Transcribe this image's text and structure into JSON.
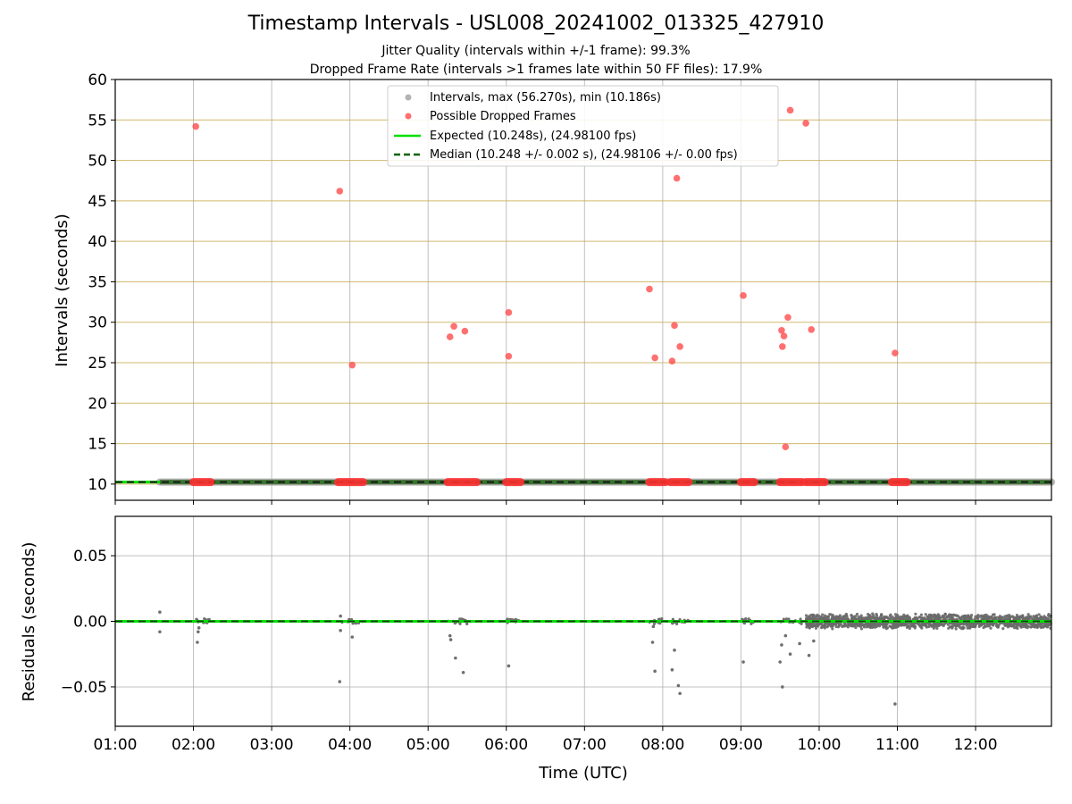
{
  "chart_data": [
    {
      "type": "scatter",
      "title": "Timestamp Intervals - USL008_20241002_013325_427910",
      "subtitle_lines": [
        "Jitter Quality (intervals within +/-1 frame): 99.3%",
        "Dropped Frame Rate (intervals >1 frames late within 50 FF files): 17.9%"
      ],
      "ylabel": "Intervals (seconds)",
      "xlabel": "",
      "ylim": [
        8,
        60
      ],
      "xlim_hours": [
        1.0,
        12.97
      ],
      "yticks": [
        "10",
        "15",
        "20",
        "25",
        "30",
        "35",
        "40",
        "45",
        "50",
        "55",
        "60"
      ],
      "grid": true,
      "legend_position": "top-center",
      "legend": [
        "Intervals, max (56.270s), min (10.186s)",
        "Possible Dropped Frames",
        "Expected (10.248s), (24.98100 fps)",
        "Median (10.248 +/- 0.002 s), (24.98106 +/- 0.00 fps)"
      ],
      "series": [
        {
          "name": "Intervals, max (56.270s), min (10.186s)",
          "color": "#808080",
          "x_range_hours": [
            1.57,
            12.97
          ],
          "y": 10.248
        },
        {
          "name": "Possible Dropped Frames",
          "color": "#ff3b3b",
          "points": [
            [
              2.03,
              54.2
            ],
            [
              3.87,
              46.2
            ],
            [
              4.03,
              24.7
            ],
            [
              5.28,
              28.2
            ],
            [
              5.33,
              29.5
            ],
            [
              5.47,
              28.9
            ],
            [
              6.03,
              31.2
            ],
            [
              6.03,
              25.8
            ],
            [
              7.83,
              34.1
            ],
            [
              7.9,
              25.6
            ],
            [
              8.12,
              25.2
            ],
            [
              8.15,
              29.6
            ],
            [
              8.18,
              47.8
            ],
            [
              8.22,
              27.0
            ],
            [
              9.03,
              33.3
            ],
            [
              9.52,
              29.0
            ],
            [
              9.53,
              27.0
            ],
            [
              9.55,
              28.3
            ],
            [
              9.57,
              14.6
            ],
            [
              9.6,
              30.6
            ],
            [
              9.63,
              56.2
            ],
            [
              9.83,
              54.6
            ],
            [
              9.9,
              29.1
            ],
            [
              10.97,
              26.2
            ]
          ],
          "clusters_at_baseline": [
            [
              2.0,
              2.22
            ],
            [
              3.85,
              4.17
            ],
            [
              5.25,
              5.62
            ],
            [
              6.0,
              6.18
            ],
            [
              7.83,
              8.03
            ],
            [
              8.1,
              8.33
            ],
            [
              9.0,
              9.17
            ],
            [
              9.5,
              9.78
            ],
            [
              9.83,
              10.07
            ],
            [
              10.93,
              11.12
            ]
          ]
        },
        {
          "name": "Expected (10.248s), (24.98100 fps)",
          "color": "#00e000",
          "y": 10.248
        },
        {
          "name": "Median (10.248 +/- 0.002 s), (24.98106 +/- 0.00 fps)",
          "color": "#006400",
          "y": 10.248
        }
      ]
    },
    {
      "type": "scatter",
      "ylabel": "Residuals (seconds)",
      "xlabel": "Time (UTC)",
      "ylim": [
        -0.08,
        0.08
      ],
      "xlim_hours": [
        1.0,
        12.97
      ],
      "yticks": [
        "0.05",
        "0.00",
        "−0.05"
      ],
      "ytick_values": [
        0.05,
        0.0,
        -0.05
      ],
      "x_ticks": [
        "01:00",
        "02:00",
        "03:00",
        "04:00",
        "05:00",
        "06:00",
        "07:00",
        "08:00",
        "09:00",
        "10:00",
        "11:00",
        "12:00"
      ],
      "x_tick_hours": [
        1,
        2,
        3,
        4,
        5,
        6,
        7,
        8,
        9,
        10,
        11,
        12
      ],
      "grid": true,
      "series": [
        {
          "name": "Residuals",
          "color": "#707070",
          "outliers": [
            [
              1.57,
              0.007
            ],
            [
              1.57,
              -0.008
            ],
            [
              2.05,
              -0.016
            ],
            [
              2.06,
              -0.008
            ],
            [
              2.07,
              -0.005
            ],
            [
              3.87,
              -0.046
            ],
            [
              3.88,
              0.004
            ],
            [
              3.88,
              -0.007
            ],
            [
              4.03,
              -0.012
            ],
            [
              5.28,
              -0.011
            ],
            [
              5.29,
              -0.014
            ],
            [
              5.35,
              -0.028
            ],
            [
              5.45,
              -0.039
            ],
            [
              6.03,
              -0.034
            ],
            [
              7.87,
              -0.016
            ],
            [
              7.9,
              -0.038
            ],
            [
              7.88,
              -0.004
            ],
            [
              8.12,
              -0.037
            ],
            [
              8.15,
              -0.022
            ],
            [
              8.2,
              -0.049
            ],
            [
              8.22,
              -0.055
            ],
            [
              9.03,
              -0.031
            ],
            [
              9.5,
              -0.031
            ],
            [
              9.52,
              -0.018
            ],
            [
              9.53,
              -0.05
            ],
            [
              9.57,
              -0.011
            ],
            [
              9.63,
              -0.025
            ],
            [
              9.75,
              -0.017
            ],
            [
              9.87,
              -0.026
            ],
            [
              9.93,
              -0.015
            ],
            [
              10.97,
              -0.063
            ]
          ],
          "dense_band_hours": [
            9.83,
            12.97
          ],
          "dense_band_amplitude": 0.006
        },
        {
          "name": "Expected",
          "color": "#00e000",
          "y": 0
        },
        {
          "name": "Median",
          "color": "#006400",
          "y": 0
        }
      ]
    }
  ]
}
